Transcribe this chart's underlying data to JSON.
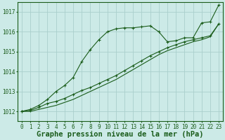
{
  "background_color": "#cceae7",
  "grid_color": "#aacfcc",
  "line_color": "#1a5c1a",
  "title": "Graphe pression niveau de la mer (hPa)",
  "title_fontsize": 7.5,
  "tick_fontsize": 5.5,
  "xlim": [
    -0.5,
    23.5
  ],
  "ylim": [
    1011.5,
    1017.5
  ],
  "yticks": [
    1012,
    1013,
    1014,
    1015,
    1016,
    1017
  ],
  "xticks": [
    0,
    1,
    2,
    3,
    4,
    5,
    6,
    7,
    8,
    9,
    10,
    11,
    12,
    13,
    14,
    15,
    16,
    17,
    18,
    19,
    20,
    21,
    22,
    23
  ],
  "line1_x": [
    0,
    1,
    2,
    3,
    4,
    5,
    6,
    7,
    8,
    9,
    10,
    11,
    12,
    13,
    14,
    15,
    16,
    17,
    18,
    19,
    20,
    21,
    22,
    23
  ],
  "line1_y": [
    1012.0,
    1012.1,
    1012.3,
    1012.6,
    1013.0,
    1013.3,
    1013.7,
    1014.5,
    1015.1,
    1015.6,
    1016.0,
    1016.15,
    1016.2,
    1016.2,
    1016.25,
    1016.3,
    1016.0,
    1015.5,
    1015.55,
    1015.7,
    1015.7,
    1016.45,
    1016.5,
    1017.35
  ],
  "line2_x": [
    0,
    1,
    2,
    3,
    4,
    5,
    6,
    7,
    8,
    9,
    10,
    11,
    12,
    13,
    14,
    15,
    16,
    17,
    18,
    19,
    20,
    21,
    22,
    23
  ],
  "line2_y": [
    1012.0,
    1012.05,
    1012.2,
    1012.4,
    1012.5,
    1012.65,
    1012.85,
    1013.05,
    1013.2,
    1013.4,
    1013.6,
    1013.8,
    1014.05,
    1014.3,
    1014.55,
    1014.8,
    1015.0,
    1015.2,
    1015.35,
    1015.5,
    1015.6,
    1015.7,
    1015.8,
    1016.4
  ],
  "line3_x": [
    0,
    1,
    2,
    3,
    4,
    5,
    6,
    7,
    8,
    9,
    10,
    11,
    12,
    13,
    14,
    15,
    16,
    17,
    18,
    19,
    20,
    21,
    22,
    23
  ],
  "line3_y": [
    1012.0,
    1012.0,
    1012.1,
    1012.2,
    1012.3,
    1012.45,
    1012.6,
    1012.8,
    1013.0,
    1013.2,
    1013.4,
    1013.6,
    1013.85,
    1014.1,
    1014.35,
    1014.6,
    1014.85,
    1015.05,
    1015.2,
    1015.35,
    1015.5,
    1015.6,
    1015.75,
    1016.4
  ]
}
